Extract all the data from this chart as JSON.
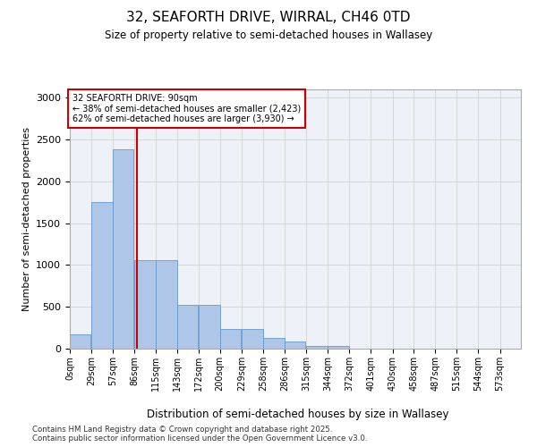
{
  "title_line1": "32, SEAFORTH DRIVE, WIRRAL, CH46 0TD",
  "title_line2": "Size of property relative to semi-detached houses in Wallasey",
  "xlabel": "Distribution of semi-detached houses by size in Wallasey",
  "ylabel": "Number of semi-detached properties",
  "property_size": 90,
  "property_label": "32 SEAFORTH DRIVE: 90sqm",
  "pct_smaller": 38,
  "pct_larger": 62,
  "count_smaller": 2423,
  "count_larger": 3930,
  "bin_labels": [
    "0sqm",
    "29sqm",
    "57sqm",
    "86sqm",
    "115sqm",
    "143sqm",
    "172sqm",
    "200sqm",
    "229sqm",
    "258sqm",
    "286sqm",
    "315sqm",
    "344sqm",
    "372sqm",
    "401sqm",
    "430sqm",
    "458sqm",
    "487sqm",
    "515sqm",
    "544sqm",
    "573sqm"
  ],
  "bin_edges": [
    0,
    29,
    57,
    86,
    115,
    143,
    172,
    200,
    229,
    258,
    286,
    315,
    344,
    372,
    401,
    430,
    458,
    487,
    515,
    544,
    573
  ],
  "bar_values": [
    175,
    1750,
    2380,
    1060,
    1060,
    520,
    520,
    240,
    240,
    130,
    85,
    30,
    30,
    5,
    0,
    0,
    0,
    0,
    0,
    0
  ],
  "bar_color": "#aec6e8",
  "bar_edge_color": "#6699cc",
  "red_line_x": 90,
  "annotation_box_color": "#ffffff",
  "annotation_border_color": "#cc0000",
  "grid_color": "#cccccc",
  "background_color": "#eef2f8",
  "ylim": [
    0,
    3100
  ],
  "yticks": [
    0,
    500,
    1000,
    1500,
    2000,
    2500,
    3000
  ],
  "footer_line1": "Contains HM Land Registry data © Crown copyright and database right 2025.",
  "footer_line2": "Contains public sector information licensed under the Open Government Licence v3.0."
}
